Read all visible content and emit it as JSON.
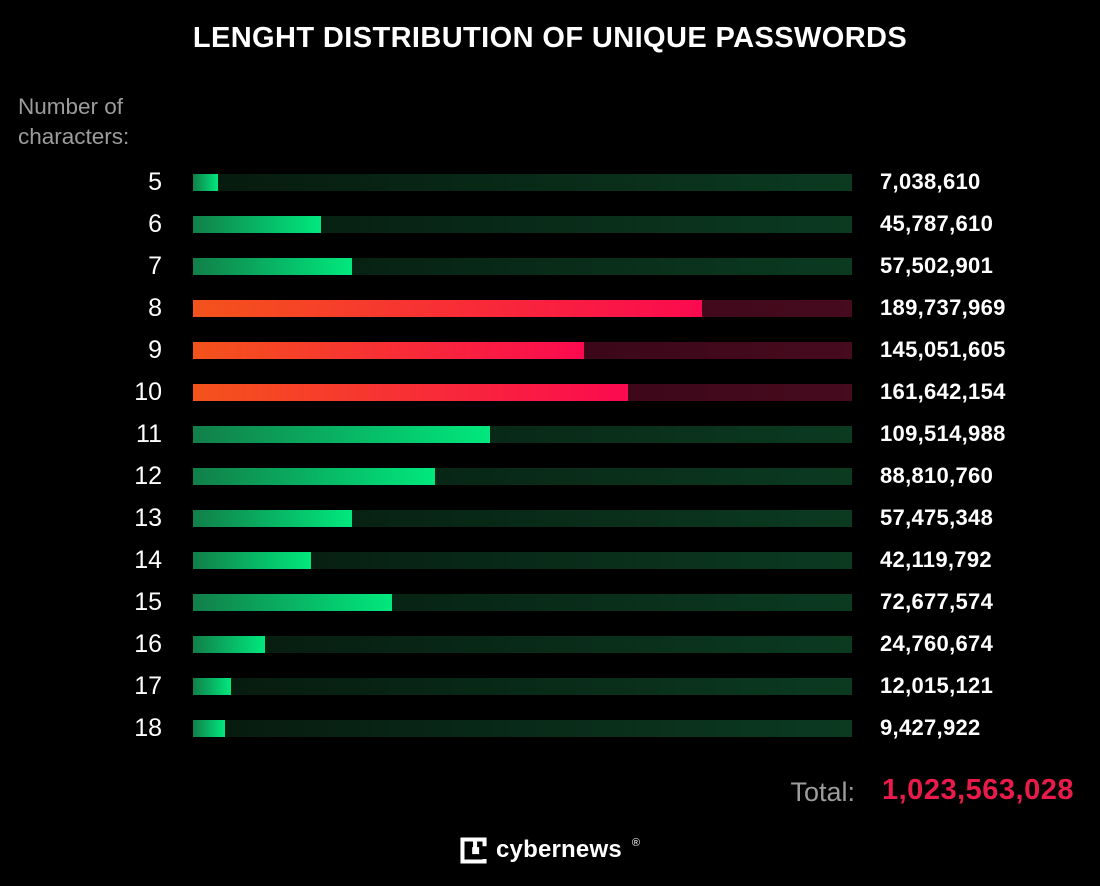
{
  "title": "LENGHT DISTRIBUTION OF UNIQUE PASSWORDS",
  "y_axis_heading": {
    "line1": "Number of",
    "line2": "characters:"
  },
  "total": {
    "label": "Total:",
    "value": "1,023,563,028"
  },
  "brand": {
    "name": "cybernews",
    "mark": "®",
    "icon": "cybernews-logo-icon"
  },
  "colors": {
    "bg": "#000000",
    "text-primary": "#ffffff",
    "text-muted": "#9c9c9c",
    "total-value": "#ea1b4b",
    "green-fill-start": "#117f49",
    "green-fill-end": "#00e87d",
    "green-track-start": "#061a0e",
    "green-track-end": "#0b3a21",
    "red-fill-start": "#f4531b",
    "red-fill-end": "#fb0a4f",
    "red-track-start": "#2a0511",
    "red-track-end": "#470a1e"
  },
  "chart_data": {
    "type": "bar",
    "orientation": "horizontal",
    "title": "LENGHT DISTRIBUTION OF UNIQUE PASSWORDS",
    "ylabel": "Number of characters",
    "xlabel": "",
    "categories": [
      5,
      6,
      7,
      8,
      9,
      10,
      11,
      12,
      13,
      14,
      15,
      16,
      17,
      18
    ],
    "values": [
      7038610,
      45787610,
      57502901,
      189737969,
      145051605,
      161642154,
      109514988,
      88810760,
      57475348,
      42119792,
      72677574,
      24760674,
      12015121,
      9427922
    ],
    "value_labels": [
      "7,038,610",
      "45,787,610",
      "57,502,901",
      "189,737,969",
      "145,051,605",
      "161,642,154",
      "109,514,988",
      "88,810,760",
      "57,475,348",
      "42,119,792",
      "72,677,574",
      "24,760,674",
      "12,015,121",
      "9,427,922"
    ],
    "highlighted_categories": [
      8,
      9,
      10
    ],
    "bar_color_default": "green",
    "bar_color_highlight": "red",
    "legend": [],
    "grid": false,
    "total": 1023563028
  }
}
